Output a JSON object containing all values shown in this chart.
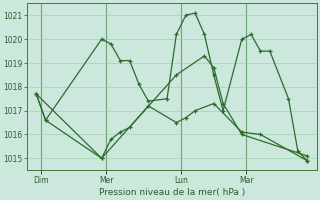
{
  "background_color": "#cce8dd",
  "grid_color": "#99ccaa",
  "line_color": "#2d6a2d",
  "title": "Pression niveau de la mer( hPa )",
  "x_tick_labels": [
    "Dim",
    "Mer",
    "Lun",
    "Mar"
  ],
  "ylim": [
    1014.5,
    1021.5
  ],
  "yticks": [
    1015,
    1016,
    1017,
    1018,
    1019,
    1020,
    1021
  ],
  "series": [
    {
      "x": [
        0,
        1,
        7,
        8,
        9,
        10,
        11,
        12,
        14,
        15,
        16,
        17,
        18,
        19,
        20,
        22,
        23,
        24,
        25,
        27,
        28,
        29
      ],
      "y": [
        1017.7,
        1016.6,
        1020.0,
        1019.8,
        1019.1,
        1019.1,
        1018.1,
        1017.4,
        1017.5,
        1020.2,
        1021.0,
        1021.1,
        1020.2,
        1018.5,
        1017.0,
        1020.0,
        1020.2,
        1019.5,
        1019.5,
        1017.5,
        1015.3,
        1014.9
      ]
    },
    {
      "x": [
        0,
        1,
        7,
        8,
        9,
        10,
        12,
        15,
        16,
        17,
        19,
        22,
        24,
        29
      ],
      "y": [
        1017.7,
        1016.6,
        1015.0,
        1015.8,
        1016.1,
        1016.3,
        1017.2,
        1016.5,
        1016.7,
        1017.0,
        1017.3,
        1016.1,
        1016.0,
        1014.9
      ]
    },
    {
      "x": [
        0,
        7,
        15,
        18,
        19,
        20,
        22,
        29
      ],
      "y": [
        1017.7,
        1015.0,
        1018.5,
        1019.3,
        1018.8,
        1017.3,
        1016.0,
        1015.1
      ]
    }
  ]
}
